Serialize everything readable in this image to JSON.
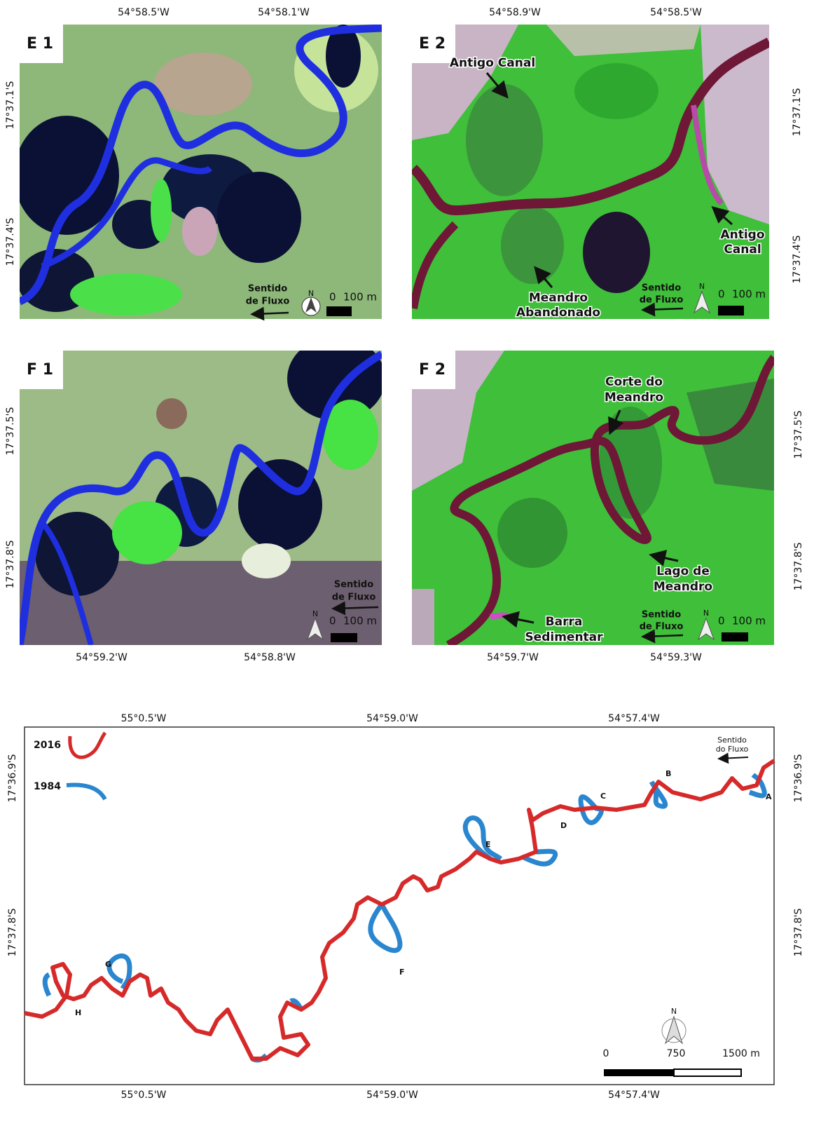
{
  "panels": [
    {
      "label": "E 1",
      "lon_labels": [
        "54°58.5'W",
        "54°58.1'W"
      ],
      "lat_labels": [
        "17°37.1'S",
        "17°37.4'S"
      ],
      "flow": [
        "Sentido",
        "de Fluxo"
      ],
      "north": "N",
      "scale": [
        "0",
        "100 m"
      ]
    },
    {
      "label": "E 2",
      "lon_labels": [
        "54°58.9'W",
        "54°58.5'W"
      ],
      "lat_labels": [
        "17°37.1'S",
        "17°37.4'S"
      ],
      "annotations": [
        [
          "Antigo Canal"
        ],
        [
          "Antigo",
          "Canal"
        ],
        [
          "Meandro",
          "Abandonado"
        ]
      ],
      "flow": [
        "Sentido",
        "de Fluxo"
      ],
      "north": "N",
      "scale": [
        "0",
        "100 m"
      ]
    },
    {
      "label": "F 1",
      "lon_labels": [
        "54°59.2'W",
        "54°58.8'W"
      ],
      "lat_labels": [
        "17°37.5'S",
        "17°37.8'S"
      ],
      "flow": [
        "Sentido",
        "de Fluxo"
      ],
      "north": "N",
      "scale": [
        "0",
        "100 m"
      ]
    },
    {
      "label": "F 2",
      "lon_labels": [
        "54°59.7'W",
        "54°59.3'W"
      ],
      "lat_labels": [
        "17°37.5'S",
        "17°37.8'S"
      ],
      "annotations": [
        [
          "Corte do",
          "Meandro"
        ],
        [
          "Lago de",
          "Meandro"
        ],
        [
          "Barra",
          "Sedimentar"
        ]
      ],
      "flow": [
        "Sentido",
        "de Fluxo"
      ],
      "north": "N",
      "scale": [
        "0",
        "100 m"
      ]
    }
  ],
  "overview": {
    "lon_labels": [
      "55°0.5'W",
      "54°59.0'W",
      "54°57.4'W"
    ],
    "lat_labels": [
      "17°36.9'S",
      "17°37.8'S"
    ],
    "legend": [
      "2016",
      "1984"
    ],
    "sites": [
      "A",
      "B",
      "C",
      "D",
      "E",
      "F",
      "G",
      "H"
    ],
    "flow": [
      "Sentido",
      "do Fluxo"
    ],
    "north": "N",
    "scale": [
      "0",
      "750",
      "1500 m"
    ]
  }
}
